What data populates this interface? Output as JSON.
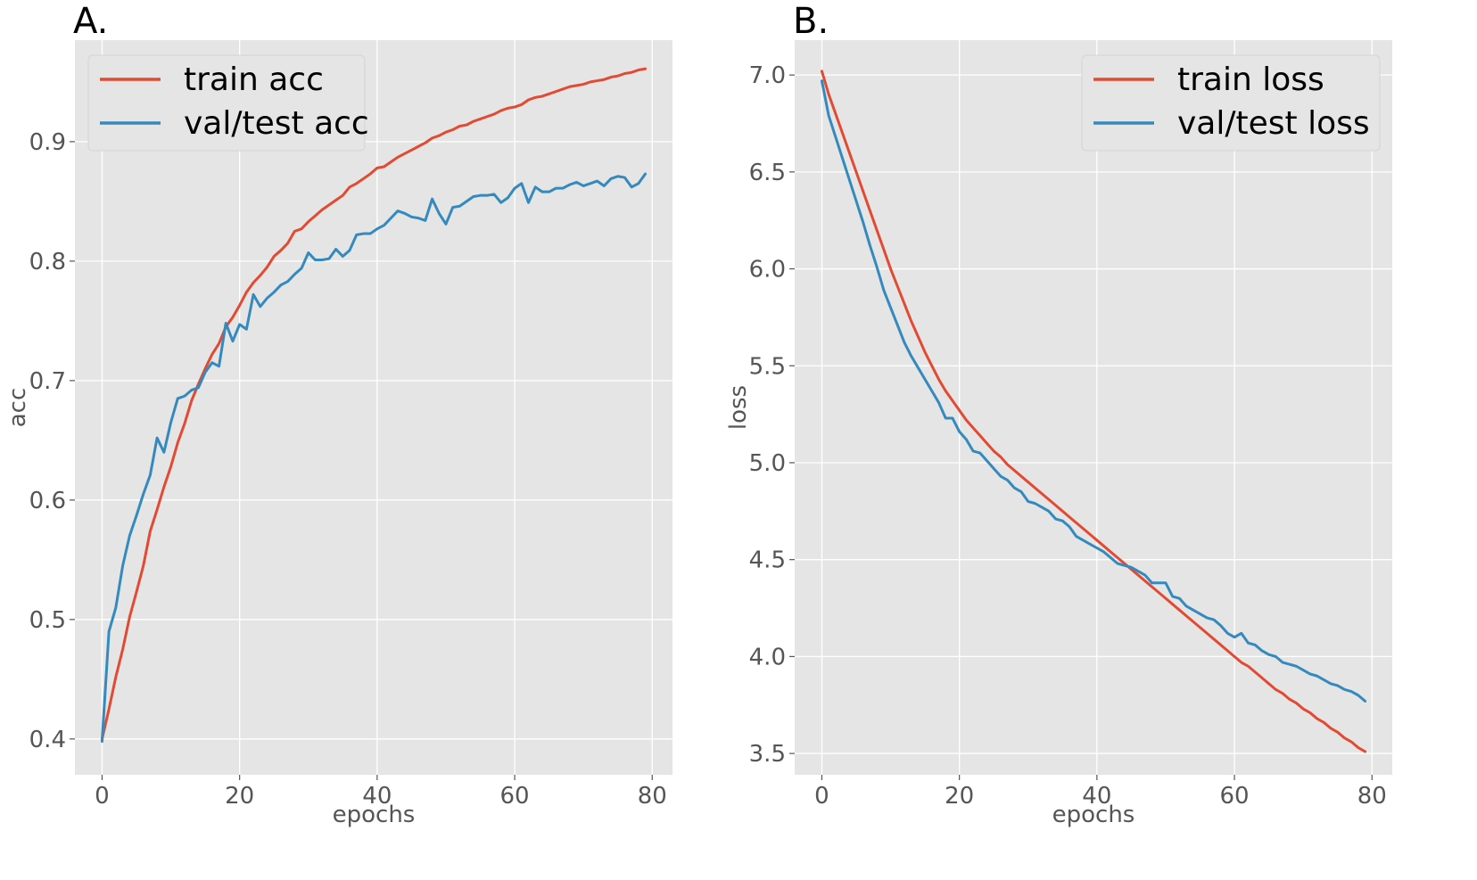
{
  "chart_data": [
    {
      "type": "line",
      "title": "A.",
      "xlabel": "epochs",
      "ylabel": "acc",
      "xlim": [
        -3.95,
        82.95
      ],
      "ylim": [
        0.37,
        0.985
      ],
      "xticks": [
        0,
        20,
        40,
        60,
        80
      ],
      "xtick_labels": [
        "0",
        "20",
        "40",
        "60",
        "80"
      ],
      "yticks": [
        0.4,
        0.5,
        0.6,
        0.7,
        0.8,
        0.9
      ],
      "ytick_labels": [
        "0.4",
        "0.5",
        "0.6",
        "0.7",
        "0.8",
        "0.9"
      ],
      "grid": true,
      "legend_position": "upper-left",
      "series": [
        {
          "name": "train acc",
          "color": "#E24A33",
          "x": [
            0,
            1,
            2,
            3,
            4,
            5,
            6,
            7,
            8,
            9,
            10,
            11,
            12,
            13,
            14,
            15,
            16,
            17,
            18,
            19,
            20,
            21,
            22,
            23,
            24,
            25,
            26,
            27,
            28,
            29,
            30,
            31,
            32,
            33,
            34,
            35,
            36,
            37,
            38,
            39,
            40,
            41,
            42,
            43,
            44,
            45,
            46,
            47,
            48,
            49,
            50,
            51,
            52,
            53,
            54,
            55,
            56,
            57,
            58,
            59,
            60,
            61,
            62,
            63,
            64,
            65,
            66,
            67,
            68,
            69,
            70,
            71,
            72,
            73,
            74,
            75,
            76,
            77,
            78,
            79
          ],
          "values": [
            0.4,
            0.425,
            0.452,
            0.475,
            0.502,
            0.523,
            0.545,
            0.574,
            0.592,
            0.611,
            0.628,
            0.648,
            0.664,
            0.683,
            0.697,
            0.71,
            0.722,
            0.731,
            0.745,
            0.753,
            0.763,
            0.774,
            0.782,
            0.788,
            0.795,
            0.804,
            0.809,
            0.815,
            0.825,
            0.827,
            0.833,
            0.838,
            0.843,
            0.847,
            0.851,
            0.855,
            0.862,
            0.865,
            0.869,
            0.873,
            0.878,
            0.879,
            0.883,
            0.887,
            0.89,
            0.893,
            0.896,
            0.899,
            0.903,
            0.905,
            0.908,
            0.91,
            0.913,
            0.914,
            0.917,
            0.919,
            0.921,
            0.923,
            0.926,
            0.928,
            0.929,
            0.931,
            0.935,
            0.937,
            0.938,
            0.94,
            0.942,
            0.944,
            0.946,
            0.947,
            0.948,
            0.95,
            0.951,
            0.952,
            0.954,
            0.955,
            0.957,
            0.958,
            0.96,
            0.961
          ]
        },
        {
          "name": "val/test acc",
          "color": "#348ABD",
          "x": [
            0,
            1,
            2,
            3,
            4,
            5,
            6,
            7,
            8,
            9,
            10,
            11,
            12,
            13,
            14,
            15,
            16,
            17,
            18,
            19,
            20,
            21,
            22,
            23,
            24,
            25,
            26,
            27,
            28,
            29,
            30,
            31,
            32,
            33,
            34,
            35,
            36,
            37,
            38,
            39,
            40,
            41,
            42,
            43,
            44,
            45,
            46,
            47,
            48,
            49,
            50,
            51,
            52,
            53,
            54,
            55,
            56,
            57,
            58,
            59,
            60,
            61,
            62,
            63,
            64,
            65,
            66,
            67,
            68,
            69,
            70,
            71,
            72,
            73,
            74,
            75,
            76,
            77,
            78,
            79
          ],
          "values": [
            0.398,
            0.49,
            0.51,
            0.545,
            0.57,
            0.587,
            0.605,
            0.621,
            0.652,
            0.64,
            0.665,
            0.685,
            0.687,
            0.692,
            0.694,
            0.707,
            0.715,
            0.712,
            0.748,
            0.733,
            0.747,
            0.743,
            0.772,
            0.762,
            0.769,
            0.774,
            0.78,
            0.783,
            0.789,
            0.794,
            0.807,
            0.801,
            0.801,
            0.802,
            0.81,
            0.804,
            0.809,
            0.822,
            0.823,
            0.823,
            0.827,
            0.83,
            0.836,
            0.842,
            0.84,
            0.837,
            0.836,
            0.834,
            0.852,
            0.84,
            0.831,
            0.845,
            0.846,
            0.85,
            0.854,
            0.855,
            0.855,
            0.856,
            0.849,
            0.853,
            0.861,
            0.865,
            0.849,
            0.862,
            0.858,
            0.858,
            0.861,
            0.861,
            0.864,
            0.866,
            0.863,
            0.865,
            0.867,
            0.863,
            0.869,
            0.871,
            0.87,
            0.862,
            0.865,
            0.873
          ]
        }
      ]
    },
    {
      "type": "line",
      "title": "B.",
      "xlabel": "epochs",
      "ylabel": "loss",
      "xlim": [
        -3.95,
        82.95
      ],
      "ylim": [
        3.39,
        7.18
      ],
      "xticks": [
        0,
        20,
        40,
        60,
        80
      ],
      "xtick_labels": [
        "0",
        "20",
        "40",
        "60",
        "80"
      ],
      "yticks": [
        3.5,
        4.0,
        4.5,
        5.0,
        5.5,
        6.0,
        6.5,
        7.0
      ],
      "ytick_labels": [
        "3.5",
        "4.0",
        "4.5",
        "5.0",
        "5.5",
        "6.0",
        "6.5",
        "7.0"
      ],
      "grid": true,
      "legend_position": "upper-right",
      "series": [
        {
          "name": "train loss",
          "color": "#E24A33",
          "x": [
            0,
            1,
            2,
            3,
            4,
            5,
            6,
            7,
            8,
            9,
            10,
            11,
            12,
            13,
            14,
            15,
            16,
            17,
            18,
            19,
            20,
            21,
            22,
            23,
            24,
            25,
            26,
            27,
            28,
            29,
            30,
            31,
            32,
            33,
            34,
            35,
            36,
            37,
            38,
            39,
            40,
            41,
            42,
            43,
            44,
            45,
            46,
            47,
            48,
            49,
            50,
            51,
            52,
            53,
            54,
            55,
            56,
            57,
            58,
            59,
            60,
            61,
            62,
            63,
            64,
            65,
            66,
            67,
            68,
            69,
            70,
            71,
            72,
            73,
            74,
            75,
            76,
            77,
            78,
            79
          ],
          "values": [
            7.02,
            6.9,
            6.8,
            6.7,
            6.6,
            6.5,
            6.4,
            6.3,
            6.2,
            6.1,
            6.0,
            5.91,
            5.82,
            5.73,
            5.65,
            5.57,
            5.5,
            5.43,
            5.37,
            5.32,
            5.27,
            5.22,
            5.18,
            5.14,
            5.1,
            5.06,
            5.03,
            4.99,
            4.96,
            4.93,
            4.9,
            4.87,
            4.84,
            4.81,
            4.78,
            4.75,
            4.72,
            4.69,
            4.66,
            4.63,
            4.6,
            4.57,
            4.54,
            4.51,
            4.48,
            4.45,
            4.42,
            4.39,
            4.36,
            4.33,
            4.3,
            4.27,
            4.24,
            4.21,
            4.18,
            4.15,
            4.12,
            4.09,
            4.06,
            4.03,
            4.0,
            3.97,
            3.95,
            3.92,
            3.89,
            3.86,
            3.83,
            3.81,
            3.78,
            3.76,
            3.73,
            3.71,
            3.68,
            3.66,
            3.63,
            3.61,
            3.58,
            3.56,
            3.53,
            3.51
          ]
        },
        {
          "name": "val/test loss",
          "color": "#348ABD",
          "x": [
            0,
            1,
            2,
            3,
            4,
            5,
            6,
            7,
            8,
            9,
            10,
            11,
            12,
            13,
            14,
            15,
            16,
            17,
            18,
            19,
            20,
            21,
            22,
            23,
            24,
            25,
            26,
            27,
            28,
            29,
            30,
            31,
            32,
            33,
            34,
            35,
            36,
            37,
            38,
            39,
            40,
            41,
            42,
            43,
            44,
            45,
            46,
            47,
            48,
            49,
            50,
            51,
            52,
            53,
            54,
            55,
            56,
            57,
            58,
            59,
            60,
            61,
            62,
            63,
            64,
            65,
            66,
            67,
            68,
            69,
            70,
            71,
            72,
            73,
            74,
            75,
            76,
            77,
            78,
            79
          ],
          "values": [
            6.97,
            6.79,
            6.68,
            6.57,
            6.46,
            6.35,
            6.24,
            6.12,
            6.01,
            5.89,
            5.8,
            5.71,
            5.62,
            5.55,
            5.49,
            5.43,
            5.37,
            5.31,
            5.23,
            5.23,
            5.16,
            5.12,
            5.06,
            5.05,
            5.01,
            4.97,
            4.93,
            4.91,
            4.87,
            4.85,
            4.8,
            4.79,
            4.77,
            4.75,
            4.71,
            4.7,
            4.67,
            4.62,
            4.6,
            4.58,
            4.56,
            4.54,
            4.51,
            4.48,
            4.47,
            4.46,
            4.44,
            4.42,
            4.38,
            4.38,
            4.38,
            4.31,
            4.3,
            4.26,
            4.24,
            4.22,
            4.2,
            4.19,
            4.16,
            4.12,
            4.1,
            4.12,
            4.07,
            4.06,
            4.03,
            4.01,
            4.0,
            3.97,
            3.96,
            3.95,
            3.93,
            3.91,
            3.9,
            3.88,
            3.86,
            3.85,
            3.83,
            3.82,
            3.8,
            3.77
          ]
        }
      ]
    }
  ]
}
